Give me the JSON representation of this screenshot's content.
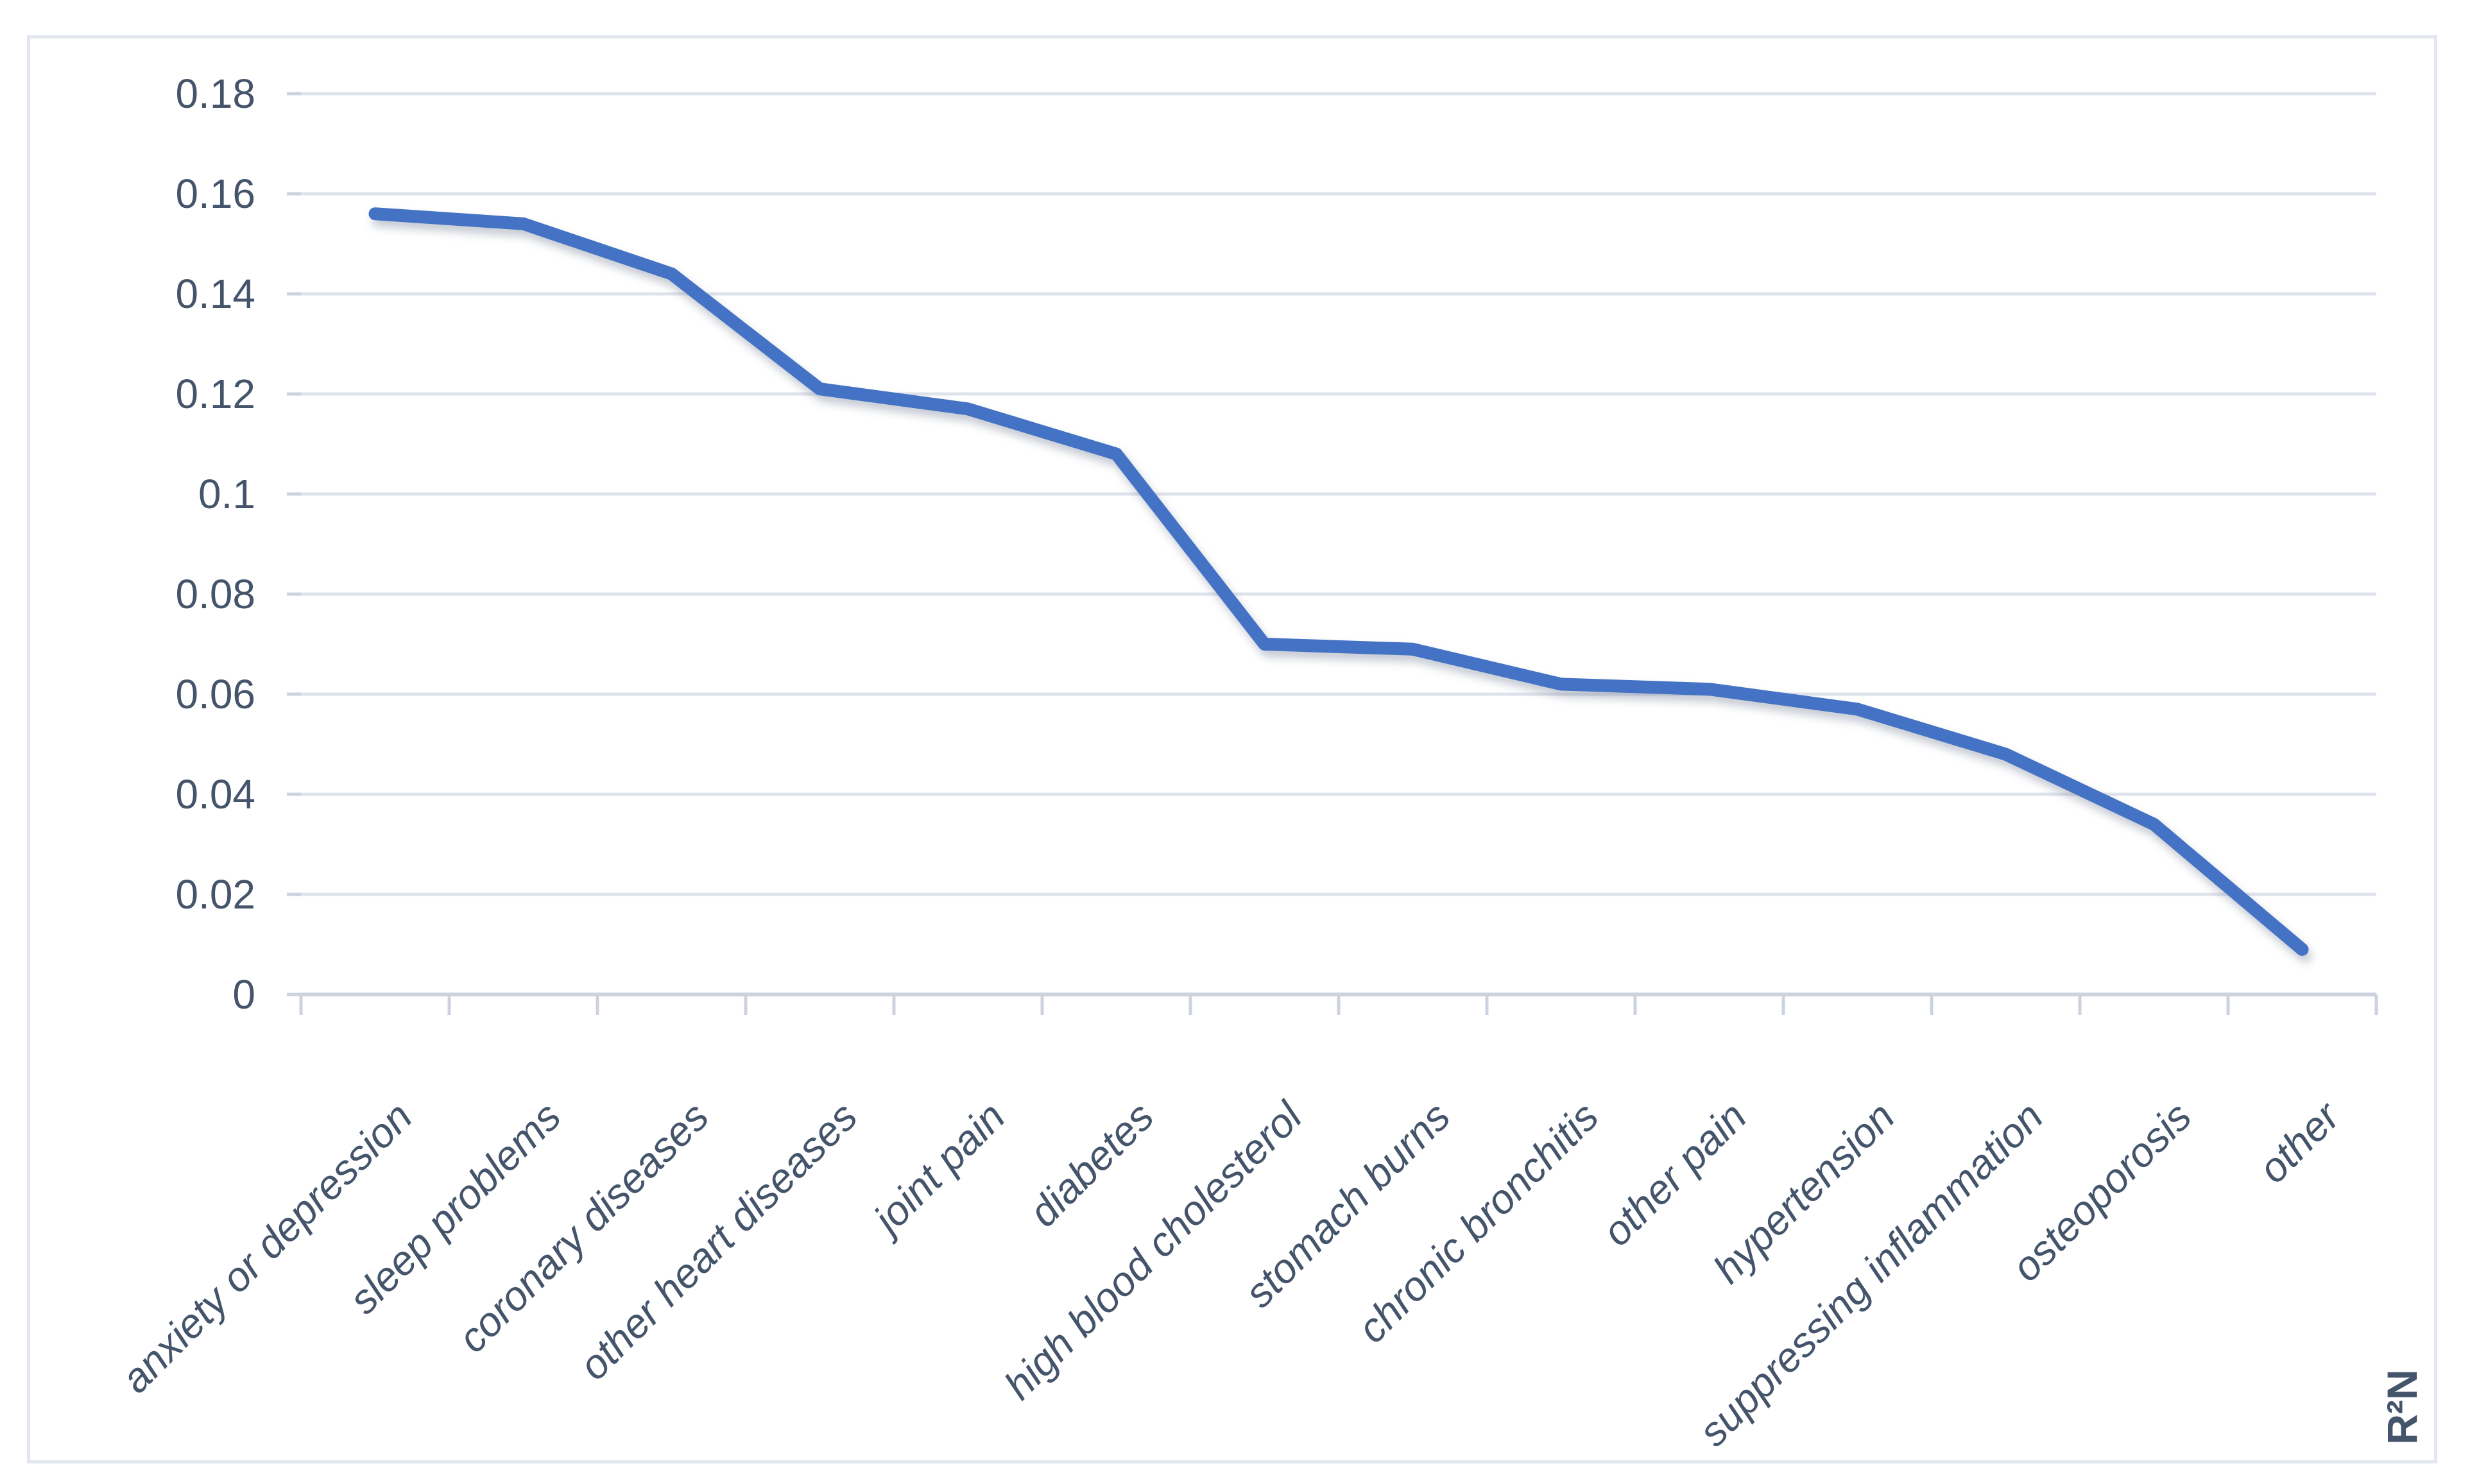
{
  "chart_data": {
    "type": "line",
    "title": "",
    "categories": [
      "anxiety or depression",
      "sleep problems",
      "coronary diseases",
      "other heart diseases",
      "joint pain",
      "diabetes",
      "high blood cholesterol",
      "stomach burns",
      "chronic bronchitis",
      "other pain",
      "hypertension",
      "suppressing inflammation",
      "osteoporosis",
      "other"
    ],
    "values": [
      0.156,
      0.154,
      0.144,
      0.121,
      0.117,
      0.108,
      0.07,
      0.069,
      0.062,
      0.061,
      0.057,
      0.048,
      0.034,
      0.009
    ],
    "series_name": "R²N",
    "axis_note": "R²N",
    "xlabel": "",
    "ylabel": "",
    "ylim": [
      0,
      0.18
    ],
    "ytick_step": 0.02,
    "ytick_labels_top_to_bottom": [
      "0.18",
      "0.16",
      "0.14",
      "0.12",
      "0.1",
      "0.08",
      "0.06",
      "0.04",
      "0.02",
      "0"
    ],
    "grid": true,
    "legend": false,
    "x_labels_rotation_deg": -45,
    "x_labels_italic": true
  },
  "colors": {
    "line": "#4472C4",
    "grid": "#dfe3ec",
    "axis": "#ccd3de",
    "text": "#44546A",
    "frame": "#e2e6ee",
    "background": "#ffffff"
  }
}
